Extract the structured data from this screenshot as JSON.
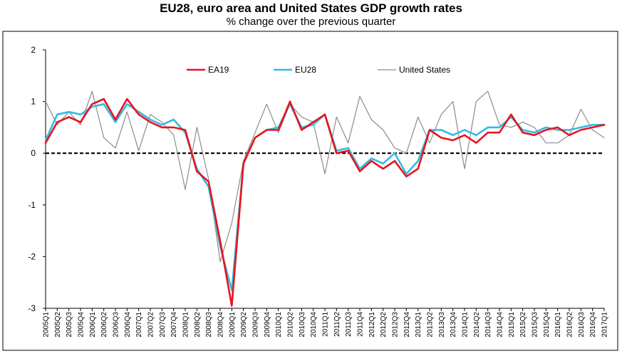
{
  "chart_data": {
    "type": "line",
    "title": "EU28, euro area and United States GDP growth rates",
    "subtitle": "% change over the previous quarter",
    "xlabel": "",
    "ylabel": "",
    "ylim": [
      -3,
      2
    ],
    "yticks": [
      "2",
      "1",
      "0",
      "-1",
      "-2",
      "-3"
    ],
    "ytick_values": [
      2,
      1,
      0,
      -1,
      -2,
      -3
    ],
    "grid": false,
    "legend_position": "top",
    "zero_line_style": "dashed",
    "categories": [
      "2005Q1",
      "2005Q2",
      "2005Q3",
      "2005Q4",
      "2006Q1",
      "2006Q2",
      "2006Q3",
      "2006Q4",
      "2007Q1",
      "2007Q2",
      "2007Q3",
      "2007Q4",
      "2008Q1",
      "2008Q2",
      "2008Q3",
      "2008Q4",
      "2009Q1",
      "2009Q2",
      "2009Q3",
      "2009Q4",
      "2010Q1",
      "2010Q2",
      "2010Q3",
      "2010Q4",
      "2011Q1",
      "2011Q2",
      "2011Q3",
      "2011Q4",
      "2012Q1",
      "2012Q2",
      "2012Q3",
      "2012Q4",
      "2013Q1",
      "2013Q2",
      "2013Q3",
      "2013Q4",
      "2014Q1",
      "2014Q2",
      "2014Q3",
      "2014Q4",
      "2015Q1",
      "2015Q2",
      "2015Q3",
      "2015Q4",
      "2016Q1",
      "2016Q2",
      "2016Q3",
      "2016Q4",
      "2017Q1"
    ],
    "series": [
      {
        "name": "EA19",
        "color": "#e8141c",
        "width": 2.6,
        "values": [
          0.2,
          0.6,
          0.7,
          0.6,
          0.95,
          1.05,
          0.65,
          1.05,
          0.75,
          0.6,
          0.5,
          0.5,
          0.45,
          -0.35,
          -0.55,
          -1.7,
          -2.95,
          -0.2,
          0.3,
          0.45,
          0.45,
          1.0,
          0.45,
          0.6,
          0.75,
          0.0,
          0.05,
          -0.35,
          -0.15,
          -0.3,
          -0.15,
          -0.45,
          -0.3,
          0.45,
          0.3,
          0.25,
          0.35,
          0.2,
          0.4,
          0.4,
          0.75,
          0.4,
          0.35,
          0.45,
          0.5,
          0.35,
          0.45,
          0.5,
          0.55
        ]
      },
      {
        "name": "EU28",
        "color": "#33bbe4",
        "width": 2.6,
        "values": [
          0.25,
          0.75,
          0.8,
          0.75,
          0.9,
          0.95,
          0.6,
          0.95,
          0.8,
          0.65,
          0.55,
          0.65,
          0.4,
          -0.3,
          -0.65,
          -1.8,
          -2.65,
          -0.2,
          0.3,
          0.45,
          0.5,
          0.95,
          0.5,
          0.55,
          0.75,
          0.05,
          0.1,
          -0.3,
          -0.1,
          -0.2,
          0.0,
          -0.4,
          -0.15,
          0.45,
          0.45,
          0.35,
          0.45,
          0.35,
          0.5,
          0.5,
          0.7,
          0.45,
          0.4,
          0.5,
          0.45,
          0.45,
          0.5,
          0.55,
          0.55
        ]
      },
      {
        "name": "United States",
        "color": "#8c8c8c",
        "width": 1.2,
        "values": [
          1.0,
          0.55,
          0.8,
          0.55,
          1.2,
          0.3,
          0.1,
          0.8,
          0.05,
          0.75,
          0.6,
          0.35,
          -0.7,
          0.5,
          -0.5,
          -2.1,
          -1.35,
          -0.15,
          0.4,
          0.95,
          0.4,
          0.95,
          0.7,
          0.6,
          -0.4,
          0.7,
          0.2,
          1.1,
          0.65,
          0.45,
          0.1,
          0.0,
          0.7,
          0.2,
          0.75,
          1.0,
          -0.3,
          1.0,
          1.2,
          0.55,
          0.5,
          0.6,
          0.5,
          0.2,
          0.2,
          0.35,
          0.85,
          0.45,
          0.3
        ]
      }
    ]
  }
}
